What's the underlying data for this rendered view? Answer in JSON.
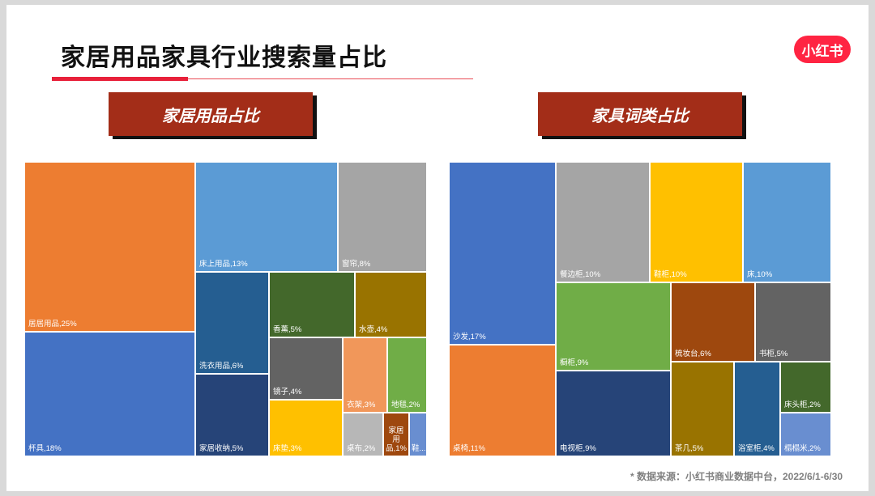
{
  "header": {
    "title": "家居用品家具行业搜索量占比",
    "logo_text": "小红书"
  },
  "source_note": "* 数据来源：小红书商业数据中台，2022/6/1-6/30",
  "chart_data": [
    {
      "type": "treemap",
      "title": "家居用品占比",
      "items": [
        {
          "name": "居居用品",
          "value": 25,
          "label": "居居用品,25%",
          "color": "#ed7d31"
        },
        {
          "name": "杯具",
          "value": 18,
          "label": "杯具,18%",
          "color": "#4472c4"
        },
        {
          "name": "床上用品",
          "value": 13,
          "label": "床上用品,13%",
          "color": "#5b9bd5"
        },
        {
          "name": "窗帘",
          "value": 8,
          "label": "窗帘,8%",
          "color": "#a5a5a5"
        },
        {
          "name": "洗衣用品",
          "value": 6,
          "label": "洗衣用品,6%",
          "color": "#255e91"
        },
        {
          "name": "家居收纳",
          "value": 5,
          "label": "家居收纳,5%",
          "color": "#264478"
        },
        {
          "name": "香薰",
          "value": 5,
          "label": "香薰,5%",
          "color": "#43682b"
        },
        {
          "name": "水壶",
          "value": 4,
          "label": "水壶,4%",
          "color": "#997300"
        },
        {
          "name": "镜子",
          "value": 4,
          "label": "镜子,4%",
          "color": "#636363"
        },
        {
          "name": "衣架",
          "value": 3,
          "label": "衣架,3%",
          "color": "#f1975a"
        },
        {
          "name": "地毯",
          "value": 2,
          "label": "地毯,2%",
          "color": "#70ad47"
        },
        {
          "name": "床垫",
          "value": 3,
          "label": "床垫,3%",
          "color": "#ffc000"
        },
        {
          "name": "桌布",
          "value": 2,
          "label": "桌布,2%",
          "color": "#b7b7b7"
        },
        {
          "name": "家居用品",
          "value": 1,
          "label": "家居用品,1%",
          "color": "#9e480e"
        },
        {
          "name": "鞋...",
          "value": null,
          "label": "鞋...",
          "color": "#698ed0"
        }
      ]
    },
    {
      "type": "treemap",
      "title": "家具词类占比",
      "items": [
        {
          "name": "沙发",
          "value": 17,
          "label": "沙发,17%",
          "color": "#4472c4"
        },
        {
          "name": "桌椅",
          "value": 11,
          "label": "桌椅,11%",
          "color": "#ed7d31"
        },
        {
          "name": "餐边柜",
          "value": 10,
          "label": "餐边柜,10%",
          "color": "#a5a5a5"
        },
        {
          "name": "鞋柜",
          "value": 10,
          "label": "鞋柜,10%",
          "color": "#ffc000"
        },
        {
          "name": "床",
          "value": 10,
          "label": "床,10%",
          "color": "#5b9bd5"
        },
        {
          "name": "橱柜",
          "value": 9,
          "label": "橱柜,9%",
          "color": "#70ad47"
        },
        {
          "name": "电视柜",
          "value": 9,
          "label": "电视柜,9%",
          "color": "#264478"
        },
        {
          "name": "梳妆台",
          "value": 6,
          "label": "梳妆台,6%",
          "color": "#9e480e"
        },
        {
          "name": "书柜",
          "value": 5,
          "label": "书柜,5%",
          "color": "#636363"
        },
        {
          "name": "茶几",
          "value": 5,
          "label": "茶几,5%",
          "color": "#997300"
        },
        {
          "name": "浴室柜",
          "value": 4,
          "label": "浴室柜,4%",
          "color": "#255e91"
        },
        {
          "name": "床头柜",
          "value": 2,
          "label": "床头柜,2%",
          "color": "#43682b"
        },
        {
          "name": "榻榻米",
          "value": 2,
          "label": "榻榻米,2%",
          "color": "#698ed0"
        }
      ]
    }
  ]
}
